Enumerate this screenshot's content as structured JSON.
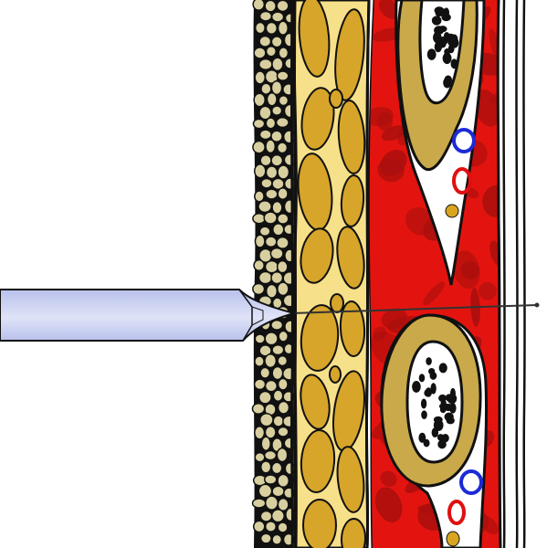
{
  "illustration": {
    "subject": "needle-tissue-layers",
    "colors": {
      "background": "#ffffff",
      "outline": "#111111",
      "skin_cells": "#d8cfa0",
      "fat_lobules": "#d6a52a",
      "fat_septa": "#f7e08a",
      "muscle": "#e3140f",
      "muscle_dark": "#a80f0d",
      "nerve_sheath": "#c9a94a",
      "nerve_inner": "#ffffff",
      "nerve_fibers": "#111111",
      "vein": "#1d2bd6",
      "artery": "#e01010",
      "lymph": "#d9a520",
      "needle_fill": "#dfe3f7",
      "needle_shadow": "#b9c1ec",
      "needle_line": "#333333"
    },
    "icons": [
      "needle-icon",
      "vein-icon",
      "artery-icon",
      "nerve-icon"
    ]
  }
}
